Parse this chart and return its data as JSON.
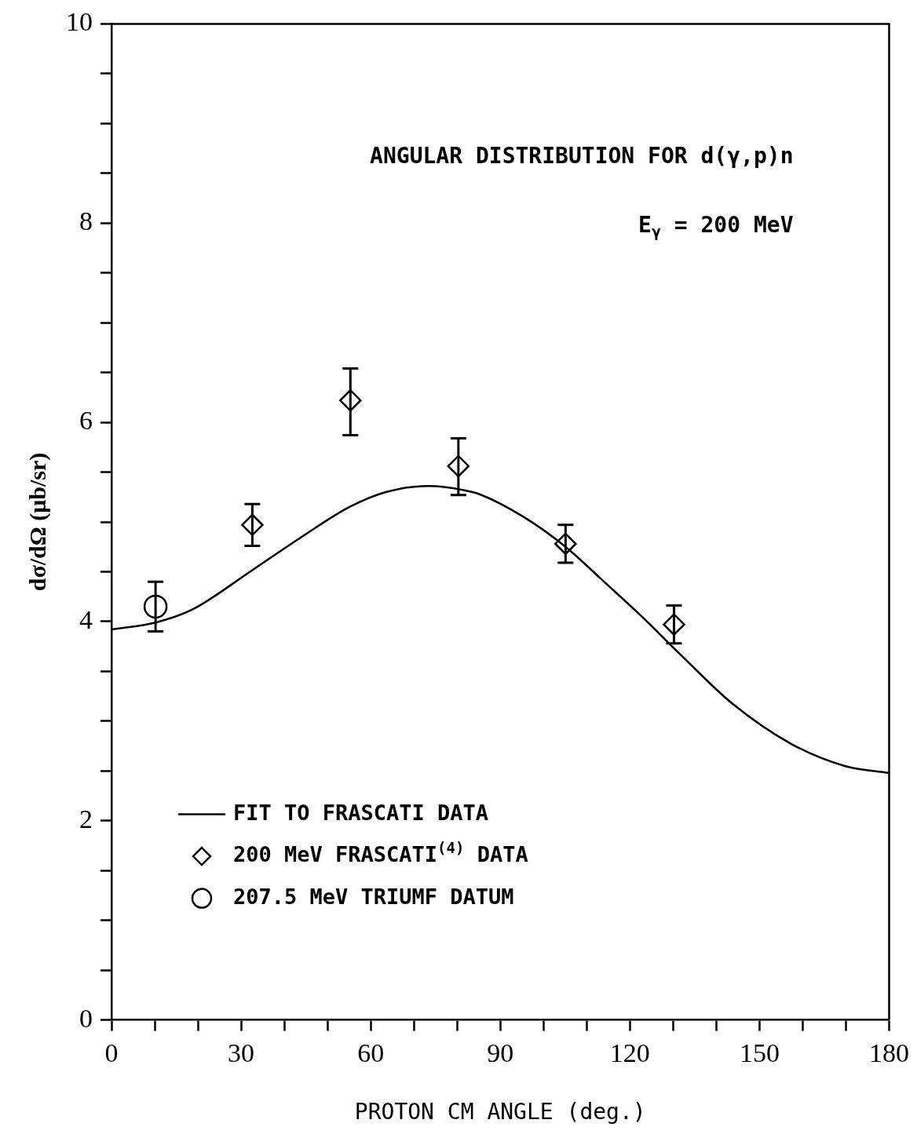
{
  "chart_data": {
    "type": "scatter",
    "title": "ANGULAR DISTRIBUTION FOR d(γ,p)n",
    "subtitle": "E$_{γ}$ = 200 MeV",
    "xlabel": "PROTON CM ANGLE (deg.)",
    "ylabel": "dσ/dΩ (μb/sr)",
    "xlim": [
      0,
      180
    ],
    "ylim": [
      0,
      10
    ],
    "xticks": [
      0,
      {
        "value": 10,
        "label": null
      },
      {
        "value": 20,
        "label": null
      },
      30,
      {
        "value": 40,
        "label": null
      },
      {
        "value": 50,
        "label": null
      },
      60,
      {
        "value": 70,
        "label": null
      },
      {
        "value": 80,
        "label": null
      },
      90,
      {
        "value": 100,
        "label": null
      },
      {
        "value": 110,
        "label": null
      },
      120,
      {
        "value": 130,
        "label": null
      },
      {
        "value": 140,
        "label": null
      },
      150,
      {
        "value": 160,
        "label": null
      },
      {
        "value": 170,
        "label": null
      },
      180
    ],
    "yticks": [
      0,
      {
        "value": 0.5,
        "label": null
      },
      {
        "value": 1,
        "label": null
      },
      {
        "value": 1.5,
        "label": null
      },
      2,
      {
        "value": 2.5,
        "label": null
      },
      {
        "value": 3,
        "label": null
      },
      {
        "value": 3.5,
        "label": null
      },
      4,
      {
        "value": 4.5,
        "label": null
      },
      {
        "value": 5,
        "label": null
      },
      {
        "value": 5.5,
        "label": null
      },
      6,
      {
        "value": 6.5,
        "label": null
      },
      {
        "value": 7,
        "label": null
      },
      {
        "value": 7.5,
        "label": null
      },
      8,
      {
        "value": 8.5,
        "label": null
      },
      {
        "value": 9,
        "label": null
      },
      {
        "value": 9.5,
        "label": null
      },
      10
    ],
    "grid": false,
    "legend": "bottom left",
    "series": [
      {
        "name": "FIT TO FRASCATI DATA",
        "type": "line",
        "color": "#000000",
        "marker": "none",
        "x": [
          0,
          10.2,
          18.7,
          32.4,
          44.4,
          55.1,
          63.5,
          73.6,
          81.4,
          85.1,
          95.4,
          105.1,
          114,
          123,
          131.9,
          143.6,
          157.4,
          169.7,
          180
        ],
        "values": [
          3.92,
          3.99,
          4.12,
          4.51,
          4.86,
          5.15,
          5.3,
          5.36,
          5.32,
          5.28,
          5.05,
          4.75,
          4.4,
          4.04,
          3.66,
          3.18,
          2.77,
          2.55,
          2.48
        ]
      },
      {
        "name": "200 MeV FRASCATI$^{(4)}$ DATA",
        "type": "scatter",
        "color": "#000000",
        "marker": "diamond",
        "x": [
          32.6,
          55.3,
          80.3,
          105.1,
          130.2
        ],
        "values": [
          4.97,
          6.22,
          5.56,
          4.78,
          3.97
        ],
        "errors": [
          [
            4.76,
            5.18
          ],
          [
            5.87,
            6.54
          ],
          [
            5.27,
            5.84
          ],
          [
            4.59,
            4.97
          ],
          [
            3.78,
            4.16
          ]
        ]
      },
      {
        "name": "207.5 MeV TRIUMF DATUM",
        "type": "scatter",
        "color": "#000000",
        "marker": "circle",
        "x": [
          10.2
        ],
        "values": [
          4.15
        ],
        "errors": [
          [
            3.9,
            4.4
          ]
        ]
      }
    ]
  }
}
